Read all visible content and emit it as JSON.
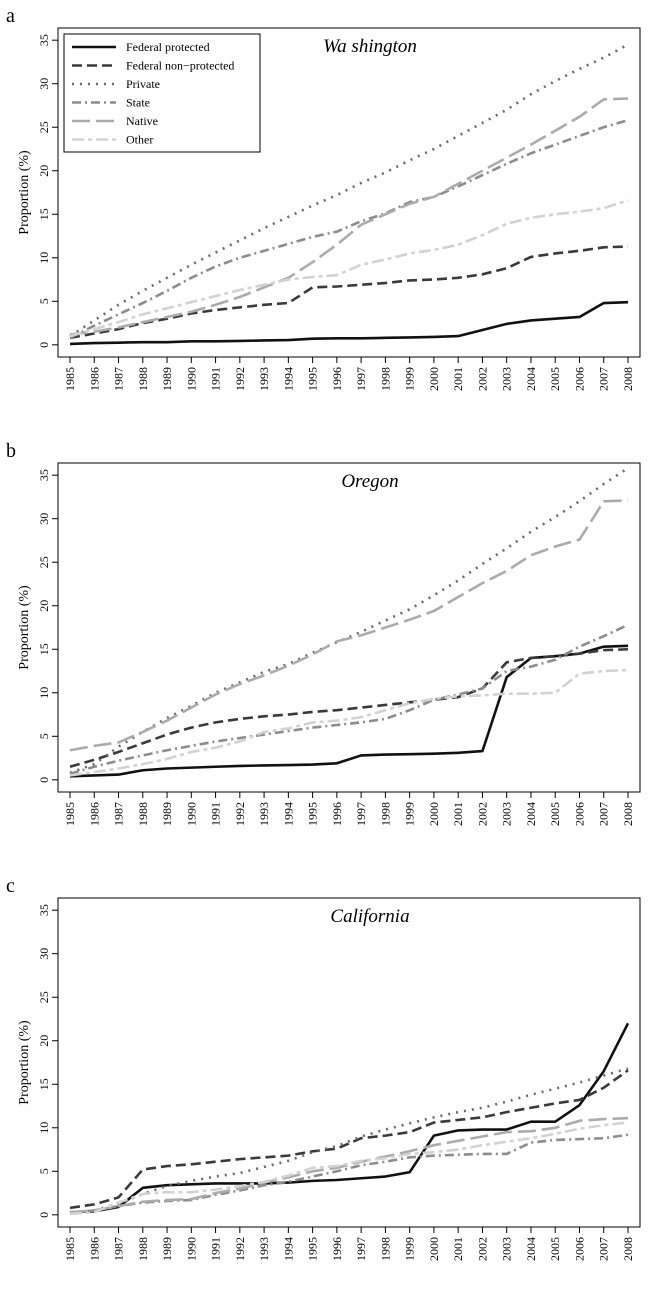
{
  "chart_data": [
    {
      "type": "line",
      "label": "a",
      "title": "Wa shington",
      "y_label": "Proportion (%)",
      "categories": [
        "1985",
        "1986",
        "1987",
        "1988",
        "1989",
        "1990",
        "1991",
        "1992",
        "1993",
        "1994",
        "1995",
        "1996",
        "1997",
        "1998",
        "1999",
        "2000",
        "2001",
        "2002",
        "2003",
        "2004",
        "2005",
        "2006",
        "2007",
        "2008"
      ],
      "ylim": [
        -1.4,
        36.4
      ],
      "yticks": [
        0,
        5,
        10,
        15,
        20,
        25,
        30,
        35
      ],
      "legend": "upper left",
      "series": [
        {
          "name": "Federal protected",
          "color": "#111111",
          "dash": "solid",
          "values": [
            0.1,
            0.2,
            0.25,
            0.3,
            0.3,
            0.4,
            0.4,
            0.45,
            0.5,
            0.55,
            0.7,
            0.75,
            0.75,
            0.8,
            0.85,
            0.9,
            1.0,
            1.7,
            2.4,
            2.8,
            3.0,
            3.2,
            4.8,
            4.9
          ]
        },
        {
          "name": "Federal non−protected",
          "color": "#3a3a3a",
          "dash": "dashed",
          "values": [
            0.8,
            1.3,
            1.8,
            2.5,
            3.0,
            3.6,
            4.0,
            4.3,
            4.6,
            4.8,
            6.6,
            6.7,
            6.9,
            7.1,
            7.4,
            7.5,
            7.7,
            8.1,
            8.8,
            10.1,
            10.5,
            10.8,
            11.2,
            11.3
          ]
        },
        {
          "name": "Private",
          "color": "#6a6a6a",
          "dash": "dotted",
          "values": [
            1.0,
            2.8,
            4.6,
            6.2,
            7.7,
            9.2,
            10.6,
            12.0,
            13.4,
            14.7,
            16.0,
            17.2,
            18.6,
            19.8,
            21.2,
            22.5,
            24.0,
            25.5,
            27.0,
            28.8,
            30.3,
            31.7,
            33.0,
            34.5
          ]
        },
        {
          "name": "State",
          "color": "#8c8c8c",
          "dash": "dashdot",
          "values": [
            0.8,
            2.2,
            3.5,
            4.8,
            6.2,
            7.7,
            9.0,
            10.0,
            10.8,
            11.6,
            12.4,
            13.0,
            14.2,
            15.1,
            16.4,
            17.0,
            18.2,
            19.5,
            20.8,
            22.0,
            23.0,
            24.0,
            25.0,
            25.8
          ]
        },
        {
          "name": "Native",
          "color": "#ababab",
          "dash": "longdash",
          "values": [
            1.2,
            1.5,
            2.0,
            2.6,
            3.2,
            3.8,
            4.6,
            5.5,
            6.6,
            7.7,
            9.5,
            11.5,
            13.8,
            15.0,
            16.2,
            17.0,
            18.5,
            20.0,
            21.5,
            23.0,
            24.6,
            26.2,
            28.2,
            28.3
          ]
        },
        {
          "name": "Other",
          "color": "#d2d2d2",
          "dash": "twodash",
          "values": [
            1.0,
            1.8,
            2.6,
            3.5,
            4.2,
            4.9,
            5.6,
            6.3,
            6.9,
            7.5,
            7.8,
            8.0,
            9.2,
            9.8,
            10.5,
            10.9,
            11.5,
            12.6,
            13.9,
            14.6,
            15.0,
            15.3,
            15.7,
            16.6
          ]
        }
      ]
    },
    {
      "type": "line",
      "label": "b",
      "title": "Oregon",
      "y_label": "Proportion (%)",
      "categories": [
        "1985",
        "1986",
        "1987",
        "1988",
        "1989",
        "1990",
        "1991",
        "1992",
        "1993",
        "1994",
        "1995",
        "1996",
        "1997",
        "1998",
        "1999",
        "2000",
        "2001",
        "2002",
        "2003",
        "2004",
        "2005",
        "2006",
        "2007",
        "2008"
      ],
      "ylim": [
        -1.4,
        36.4
      ],
      "yticks": [
        0,
        5,
        10,
        15,
        20,
        25,
        30,
        35
      ],
      "series": [
        {
          "name": "Federal protected",
          "color": "#111111",
          "dash": "solid",
          "values": [
            0.4,
            0.5,
            0.6,
            1.1,
            1.3,
            1.4,
            1.5,
            1.6,
            1.65,
            1.7,
            1.75,
            1.9,
            2.8,
            2.9,
            2.95,
            3.0,
            3.1,
            3.3,
            11.8,
            14.0,
            14.2,
            14.5,
            15.3,
            15.4
          ]
        },
        {
          "name": "Federal non−protected",
          "color": "#3a3a3a",
          "dash": "dashed",
          "values": [
            1.5,
            2.3,
            3.2,
            4.2,
            5.2,
            6.0,
            6.6,
            7.0,
            7.3,
            7.5,
            7.8,
            8.0,
            8.3,
            8.6,
            8.9,
            9.2,
            9.5,
            10.5,
            13.5,
            14.0,
            14.2,
            14.5,
            14.9,
            15.0
          ]
        },
        {
          "name": "Private",
          "color": "#6a6a6a",
          "dash": "dotted",
          "values": [
            0.8,
            1.8,
            3.8,
            5.5,
            7.1,
            8.5,
            10.0,
            11.2,
            12.4,
            13.3,
            14.6,
            15.8,
            17.0,
            18.3,
            19.6,
            21.2,
            22.9,
            24.8,
            26.6,
            28.5,
            30.2,
            32.0,
            34.0,
            35.8
          ]
        },
        {
          "name": "State",
          "color": "#8c8c8c",
          "dash": "dashdot",
          "values": [
            0.7,
            1.5,
            2.2,
            2.8,
            3.4,
            3.9,
            4.4,
            4.8,
            5.2,
            5.6,
            6.0,
            6.3,
            6.6,
            7.0,
            8.0,
            9.2,
            9.8,
            10.5,
            12.5,
            13.0,
            13.8,
            15.3,
            16.5,
            17.8
          ]
        },
        {
          "name": "Native",
          "color": "#ababab",
          "dash": "longdash",
          "values": [
            3.4,
            3.9,
            4.3,
            5.5,
            6.8,
            8.3,
            9.8,
            11.0,
            12.0,
            13.1,
            14.4,
            15.9,
            16.6,
            17.5,
            18.4,
            19.4,
            21.0,
            22.6,
            24.0,
            25.8,
            26.8,
            27.6,
            32.0,
            32.1
          ]
        },
        {
          "name": "Other",
          "color": "#d2d2d2",
          "dash": "twodash",
          "values": [
            0.5,
            0.9,
            1.3,
            1.8,
            2.4,
            3.2,
            3.7,
            4.4,
            5.5,
            5.9,
            6.6,
            6.8,
            7.2,
            8.0,
            8.8,
            9.3,
            9.6,
            9.7,
            9.9,
            9.9,
            10.0,
            12.2,
            12.5,
            12.6
          ]
        }
      ]
    },
    {
      "type": "line",
      "label": "c",
      "title": "California",
      "y_label": "Proportion (%)",
      "categories": [
        "1985",
        "1986",
        "1987",
        "1988",
        "1989",
        "1990",
        "1991",
        "1992",
        "1993",
        "1994",
        "1995",
        "1996",
        "1997",
        "1998",
        "1999",
        "2000",
        "2001",
        "2002",
        "2003",
        "2004",
        "2005",
        "2006",
        "2007",
        "2008"
      ],
      "ylim": [
        -1.4,
        36.4
      ],
      "yticks": [
        0,
        5,
        10,
        15,
        20,
        25,
        30,
        35
      ],
      "series": [
        {
          "name": "Federal protected",
          "color": "#111111",
          "dash": "solid",
          "values": [
            0.3,
            0.4,
            0.9,
            3.1,
            3.4,
            3.5,
            3.6,
            3.6,
            3.6,
            3.7,
            3.9,
            4.0,
            4.2,
            4.4,
            4.9,
            9.1,
            9.7,
            9.8,
            9.8,
            10.7,
            10.7,
            12.6,
            16.5,
            22.0
          ]
        },
        {
          "name": "Federal non−protected",
          "color": "#3a3a3a",
          "dash": "dashed",
          "values": [
            0.8,
            1.2,
            2.0,
            5.2,
            5.6,
            5.8,
            6.1,
            6.4,
            6.6,
            6.8,
            7.3,
            7.6,
            8.8,
            9.1,
            9.5,
            10.6,
            10.9,
            11.2,
            11.8,
            12.3,
            12.8,
            13.2,
            14.6,
            16.6
          ]
        },
        {
          "name": "Private",
          "color": "#6a6a6a",
          "dash": "dotted",
          "values": [
            0.2,
            0.5,
            1.3,
            2.4,
            3.3,
            3.9,
            4.4,
            4.8,
            5.5,
            6.2,
            7.2,
            7.9,
            9.0,
            9.8,
            10.5,
            11.2,
            11.8,
            12.3,
            13.0,
            13.8,
            14.5,
            15.2,
            16.0,
            16.8
          ]
        },
        {
          "name": "State",
          "color": "#8c8c8c",
          "dash": "dashdot",
          "values": [
            0.2,
            0.5,
            1.0,
            1.4,
            1.6,
            1.7,
            2.3,
            2.8,
            3.4,
            3.8,
            4.4,
            5.0,
            5.7,
            6.1,
            6.6,
            6.8,
            6.9,
            7.0,
            7.0,
            8.3,
            8.6,
            8.7,
            8.8,
            9.2
          ]
        },
        {
          "name": "Native",
          "color": "#ababab",
          "dash": "longdash",
          "values": [
            0.3,
            0.5,
            1.0,
            1.5,
            1.7,
            1.8,
            2.5,
            3.0,
            3.7,
            4.3,
            5.0,
            5.4,
            6.1,
            6.7,
            7.3,
            8.0,
            8.5,
            9.0,
            9.5,
            9.6,
            10.0,
            10.8,
            11.0,
            11.1
          ]
        },
        {
          "name": "Other",
          "color": "#d2d2d2",
          "dash": "twodash",
          "values": [
            0.1,
            0.3,
            1.4,
            2.4,
            2.6,
            2.6,
            2.9,
            3.3,
            3.8,
            4.5,
            5.4,
            5.6,
            6.2,
            6.5,
            7.0,
            7.2,
            7.5,
            8.0,
            8.4,
            8.8,
            9.3,
            9.9,
            10.3,
            10.6
          ]
        }
      ]
    }
  ]
}
